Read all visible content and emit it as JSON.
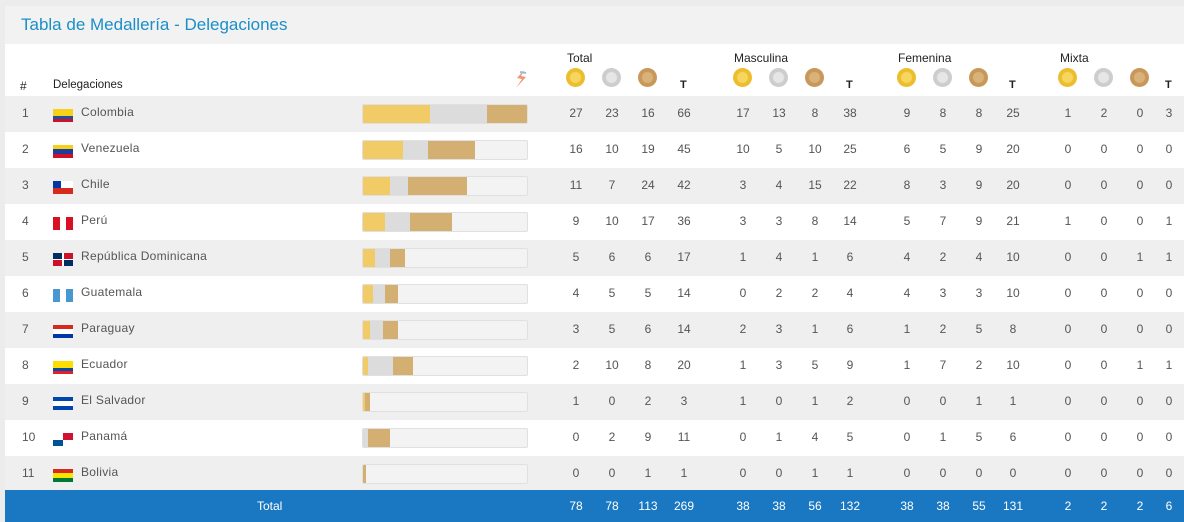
{
  "title": "Tabla de Medallería - Delegaciones",
  "header": {
    "rank": "#",
    "delegations": "Delegaciones",
    "groups": [
      "Total",
      "Masculina",
      "Femenina",
      "Mixta"
    ],
    "total_col": "T"
  },
  "icons": {
    "gold": "gold-medal-icon",
    "silver": "silver-medal-icon",
    "bronze": "bronze-medal-icon",
    "logo": "games-logo-icon"
  },
  "colors": {
    "accent": "#1a8fc8",
    "total_bar": "#1a78c2",
    "gold": "#f1cb66",
    "silver": "#dcdcdc",
    "bronze": "#d3b072"
  },
  "rows": [
    {
      "rank": "1",
      "country": "Colombia",
      "flag": "colombia-flag-icon",
      "total": [
        "27",
        "23",
        "16",
        "66"
      ],
      "masc": [
        "17",
        "13",
        "8",
        "38"
      ],
      "fem": [
        "9",
        "8",
        "8",
        "25"
      ],
      "mix": [
        "1",
        "2",
        "0",
        "3"
      ]
    },
    {
      "rank": "2",
      "country": "Venezuela",
      "flag": "venezuela-flag-icon",
      "total": [
        "16",
        "10",
        "19",
        "45"
      ],
      "masc": [
        "10",
        "5",
        "10",
        "25"
      ],
      "fem": [
        "6",
        "5",
        "9",
        "20"
      ],
      "mix": [
        "0",
        "0",
        "0",
        "0"
      ]
    },
    {
      "rank": "3",
      "country": "Chile",
      "flag": "chile-flag-icon",
      "total": [
        "11",
        "7",
        "24",
        "42"
      ],
      "masc": [
        "3",
        "4",
        "15",
        "22"
      ],
      "fem": [
        "8",
        "3",
        "9",
        "20"
      ],
      "mix": [
        "0",
        "0",
        "0",
        "0"
      ]
    },
    {
      "rank": "4",
      "country": "Perú",
      "flag": "peru-flag-icon",
      "total": [
        "9",
        "10",
        "17",
        "36"
      ],
      "masc": [
        "3",
        "3",
        "8",
        "14"
      ],
      "fem": [
        "5",
        "7",
        "9",
        "21"
      ],
      "mix": [
        "1",
        "0",
        "0",
        "1"
      ]
    },
    {
      "rank": "5",
      "country": "República Dominicana",
      "flag": "dominican-republic-flag-icon",
      "total": [
        "5",
        "6",
        "6",
        "17"
      ],
      "masc": [
        "1",
        "4",
        "1",
        "6"
      ],
      "fem": [
        "4",
        "2",
        "4",
        "10"
      ],
      "mix": [
        "0",
        "0",
        "1",
        "1"
      ]
    },
    {
      "rank": "6",
      "country": "Guatemala",
      "flag": "guatemala-flag-icon",
      "total": [
        "4",
        "5",
        "5",
        "14"
      ],
      "masc": [
        "0",
        "2",
        "2",
        "4"
      ],
      "fem": [
        "4",
        "3",
        "3",
        "10"
      ],
      "mix": [
        "0",
        "0",
        "0",
        "0"
      ]
    },
    {
      "rank": "7",
      "country": "Paraguay",
      "flag": "paraguay-flag-icon",
      "total": [
        "3",
        "5",
        "6",
        "14"
      ],
      "masc": [
        "2",
        "3",
        "1",
        "6"
      ],
      "fem": [
        "1",
        "2",
        "5",
        "8"
      ],
      "mix": [
        "0",
        "0",
        "0",
        "0"
      ]
    },
    {
      "rank": "8",
      "country": "Ecuador",
      "flag": "ecuador-flag-icon",
      "total": [
        "2",
        "10",
        "8",
        "20"
      ],
      "masc": [
        "1",
        "3",
        "5",
        "9"
      ],
      "fem": [
        "1",
        "7",
        "2",
        "10"
      ],
      "mix": [
        "0",
        "0",
        "1",
        "1"
      ]
    },
    {
      "rank": "9",
      "country": "El Salvador",
      "flag": "el-salvador-flag-icon",
      "total": [
        "1",
        "0",
        "2",
        "3"
      ],
      "masc": [
        "1",
        "0",
        "1",
        "2"
      ],
      "fem": [
        "0",
        "0",
        "1",
        "1"
      ],
      "mix": [
        "0",
        "0",
        "0",
        "0"
      ]
    },
    {
      "rank": "10",
      "country": "Panamá",
      "flag": "panama-flag-icon",
      "total": [
        "0",
        "2",
        "9",
        "11"
      ],
      "masc": [
        "0",
        "1",
        "4",
        "5"
      ],
      "fem": [
        "0",
        "1",
        "5",
        "6"
      ],
      "mix": [
        "0",
        "0",
        "0",
        "0"
      ]
    },
    {
      "rank": "11",
      "country": "Bolivia",
      "flag": "bolivia-flag-icon",
      "total": [
        "0",
        "0",
        "1",
        "1"
      ],
      "masc": [
        "0",
        "0",
        "1",
        "1"
      ],
      "fem": [
        "0",
        "0",
        "0",
        "0"
      ],
      "mix": [
        "0",
        "0",
        "0",
        "0"
      ]
    }
  ],
  "totals": {
    "label": "Total",
    "total": [
      "78",
      "78",
      "113",
      "269"
    ],
    "masc": [
      "38",
      "38",
      "56",
      "132"
    ],
    "fem": [
      "38",
      "38",
      "55",
      "131"
    ],
    "mix": [
      "2",
      "2",
      "2",
      "6"
    ]
  }
}
